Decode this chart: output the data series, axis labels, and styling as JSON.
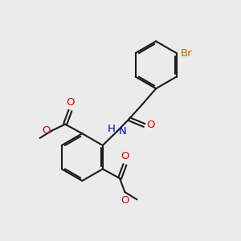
{
  "bg_color": "#ebebeb",
  "black": "#1a1a1a",
  "red": "#dd0000",
  "blue": "#0000cc",
  "orange": "#cc6600",
  "bond_lw": 1.5,
  "font_size": 9.5,
  "figsize": [
    3.0,
    3.0
  ],
  "dpi": 100,
  "xlim": [
    0,
    10
  ],
  "ylim": [
    0,
    10
  ]
}
